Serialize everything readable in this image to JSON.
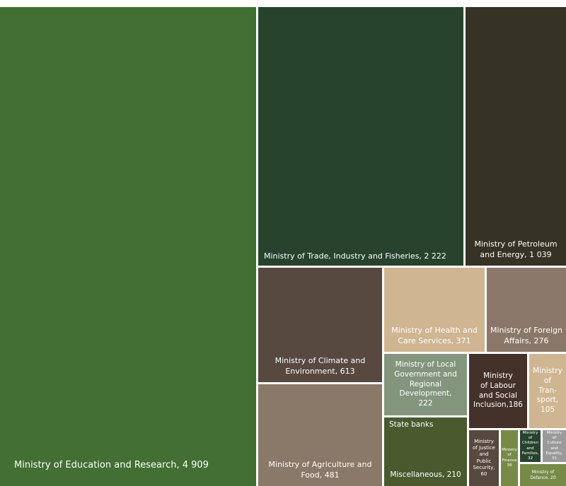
{
  "chart_data": {
    "type": "treemap",
    "title": "",
    "items": [
      {
        "label": "Ministry of Education and Research, 4 909",
        "name": "Ministry of Education and Research",
        "value": 4909,
        "color": "#436f33"
      },
      {
        "label": "Ministry of Trade, Industry and Fisheries, 2 222",
        "name": "Ministry of Trade, Industry and Fisheries",
        "value": 2222,
        "color": "#27432e"
      },
      {
        "label": "Ministry of Petroleum\nand  Energy, 1 039",
        "name": "Ministry of Petroleum and Energy",
        "value": 1039,
        "color": "#363224"
      },
      {
        "label": "Ministry of Climate and\nEnvironment, 613",
        "name": "Ministry of Climate and Environment",
        "value": 613,
        "color": "#574840"
      },
      {
        "label": "Ministry of Health and\nCare Services, 371",
        "name": "Ministry of Health and Care Services",
        "value": 371,
        "color": "#cfb592"
      },
      {
        "label": "Ministry of Foreign\nAffairs, 276",
        "name": "Ministry of Foreign Affairs",
        "value": 276,
        "color": "#8b7769"
      },
      {
        "label": "Ministry of Agriculture and\nFood, 481",
        "name": "Ministry of Agriculture and Food",
        "value": 481,
        "color": "#8a7868"
      },
      {
        "label": "Ministry of Local\nGovernment and\nRegional Development,\n222",
        "name": "Ministry of Local Government and Regional Development",
        "value": 222,
        "color": "#84957e"
      },
      {
        "label": "Ministry\nof Labour\nand Social\nInclusion,186",
        "name": "Ministry of Labour and Social Inclusion",
        "value": 186,
        "color": "#43312a"
      },
      {
        "label": "Ministry\nof\nTran-\nsport,\n105",
        "name": "Ministry of Transport",
        "value": 105,
        "color": "#cfb592"
      },
      {
        "label": "Miscellaneous, 210",
        "name": "Miscellaneous",
        "value": 210,
        "color": "#4b5a2e",
        "group_label": "State banks"
      },
      {
        "label": "Ministry\nof Justice\nand Public\nSecurity,\n60",
        "name": "Ministry of Justice and Public Security",
        "value": 60,
        "color": "#574840"
      },
      {
        "label": "Ministry\nof\nFinance\n38",
        "name": "Ministry of Finance",
        "value": 38,
        "color": "#788a48"
      },
      {
        "label": "Ministry\nof\nChildren\nand\nFamilies,\n32",
        "name": "Ministry of Children and Families",
        "value": 32,
        "color": "#27432e"
      },
      {
        "label": "Ministry\nof Culture\nand\nEquality,\n31",
        "name": "Ministry of Culture and Equality",
        "value": 31,
        "color": "#9a9a9a"
      },
      {
        "label": "Ministry of\nDefence, 20",
        "name": "Ministry of Defence",
        "value": 20,
        "color": "#788a48"
      }
    ]
  }
}
